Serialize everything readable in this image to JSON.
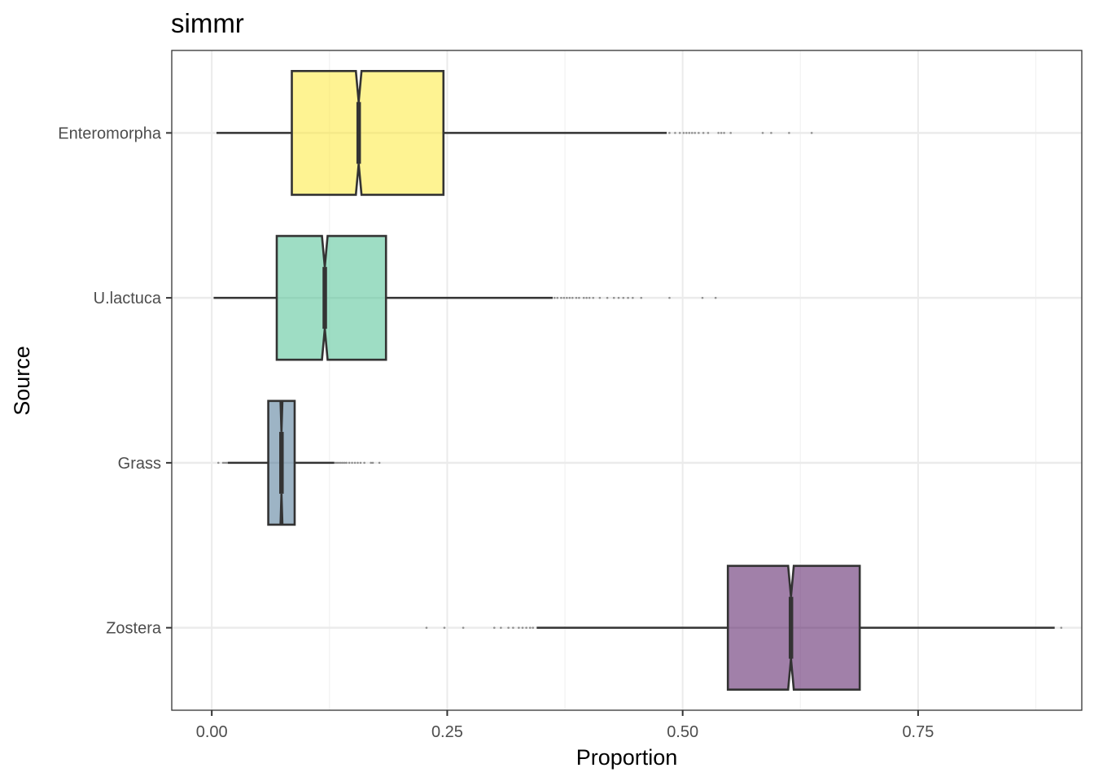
{
  "chart_data": {
    "type": "boxplot",
    "orientation": "horizontal",
    "notched": true,
    "title": "simmr",
    "xlabel": "Proportion",
    "ylabel": "Source",
    "xlim": [
      -0.0425,
      0.9238
    ],
    "xticks": [
      0.0,
      0.25,
      0.5,
      0.75
    ],
    "xtick_labels": [
      "0.00",
      "0.25",
      "0.50",
      "0.75"
    ],
    "grid": true,
    "legend": "none",
    "categories": [
      "Enteromorpha",
      "U.lactuca",
      "Grass",
      "Zostera"
    ],
    "series": [
      {
        "category": "Enteromorpha",
        "color": "#FDE725",
        "whisker_low": 0.005,
        "q1": 0.085,
        "median": 0.156,
        "q3": 0.246,
        "whisker_high": 0.483,
        "notch_low": 0.153,
        "notch_high": 0.159,
        "outliers": [
          0.486,
          0.492,
          0.497,
          0.501,
          0.504,
          0.507,
          0.51,
          0.513,
          0.517,
          0.522,
          0.527,
          0.538,
          0.541,
          0.544,
          0.551,
          0.585,
          0.594,
          0.613,
          0.637
        ]
      },
      {
        "category": "U.lactuca",
        "color": "#5EC962",
        "color_fill": "#3DBC8A",
        "whisker_low": 0.002,
        "q1": 0.069,
        "median": 0.12,
        "q3": 0.185,
        "whisker_high": 0.362,
        "notch_low": 0.117,
        "notch_high": 0.123,
        "outliers": [
          0.364,
          0.367,
          0.371,
          0.374,
          0.377,
          0.38,
          0.383,
          0.387,
          0.39,
          0.395,
          0.398,
          0.401,
          0.405,
          0.412,
          0.42,
          0.427,
          0.432,
          0.437,
          0.442,
          0.447,
          0.456,
          0.486,
          0.521,
          0.535
        ]
      },
      {
        "category": "Grass",
        "color": "#3B6A8C",
        "whisker_low": 0.017,
        "q1": 0.06,
        "median": 0.074,
        "q3": 0.088,
        "whisker_high": 0.13,
        "notch_low": 0.073,
        "notch_high": 0.075,
        "outliers": [
          0.007,
          0.012,
          0.014,
          0.016,
          0.131,
          0.133,
          0.135,
          0.137,
          0.139,
          0.141,
          0.143,
          0.146,
          0.149,
          0.152,
          0.155,
          0.158,
          0.162,
          0.169,
          0.171,
          0.178
        ]
      },
      {
        "category": "Zostera",
        "color": "#440154",
        "whisker_low": 0.345,
        "q1": 0.548,
        "median": 0.615,
        "q3": 0.688,
        "whisker_high": 0.895,
        "notch_low": 0.612,
        "notch_high": 0.618,
        "outliers": [
          0.228,
          0.247,
          0.267,
          0.3,
          0.307,
          0.315,
          0.32,
          0.326,
          0.33,
          0.334,
          0.338,
          0.341,
          0.902
        ]
      }
    ]
  }
}
